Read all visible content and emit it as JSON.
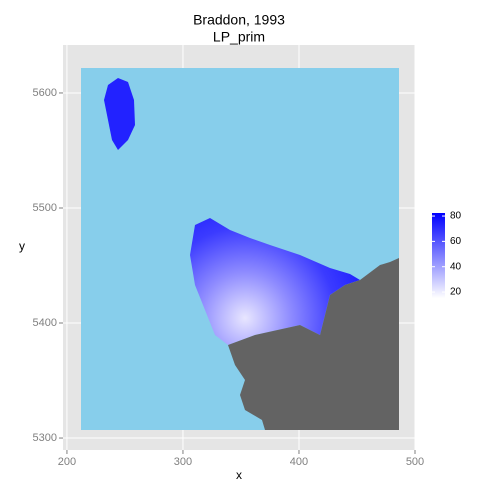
{
  "chart_data": {
    "type": "raster",
    "title": "Braddon, 1993",
    "subtitle": "LP_prim",
    "x_label": "x",
    "y_label": "y",
    "xlim": [
      196.6,
      500
    ],
    "xticks": [
      200,
      300,
      400,
      500
    ],
    "ylim": [
      5289.6,
      5641.7
    ],
    "yticks": [
      5300,
      5400,
      5500,
      5600
    ],
    "colorbar": {
      "lim": [
        15.3,
        82.4
      ],
      "ticks": [
        20,
        40,
        60,
        80
      ],
      "low_color": "#ffffff",
      "high_color": "#0000ff"
    },
    "grid": true
  }
}
